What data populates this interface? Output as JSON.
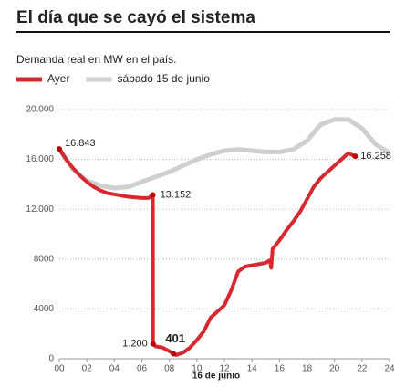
{
  "chart_data": {
    "type": "line",
    "title": "El día que se cayó el sistema",
    "subtitle": "Demanda real en MW en el país.",
    "xlabel": "16 de junio",
    "xlim": [
      0,
      24
    ],
    "xticks": [
      {
        "value": 0,
        "label": "00"
      },
      {
        "value": 2,
        "label": "02"
      },
      {
        "value": 4,
        "label": "04"
      },
      {
        "value": 6,
        "label": "06"
      },
      {
        "value": 8,
        "label": "08"
      },
      10,
      12,
      14,
      16,
      18,
      20,
      22,
      24
    ],
    "ylim": [
      0,
      20000
    ],
    "yticks": [
      0,
      4000,
      8000,
      {
        "value": 12000,
        "label": "12.000"
      },
      {
        "value": 16000,
        "label": "16.000"
      },
      {
        "value": 20000,
        "label": "20.000"
      }
    ],
    "grid": true,
    "series": [
      {
        "name": "sábado 15 de junio",
        "color": "#cfcfcf",
        "x": [
          0,
          1,
          2,
          3,
          4,
          5,
          6,
          7,
          8,
          9,
          10,
          11,
          12,
          13,
          14,
          15,
          16,
          17,
          18,
          19,
          20,
          21,
          22,
          23,
          24
        ],
        "values": [
          16843,
          15200,
          14300,
          13900,
          13700,
          13800,
          14200,
          14600,
          15000,
          15500,
          16000,
          16400,
          16700,
          16800,
          16700,
          16600,
          16600,
          16800,
          17500,
          18800,
          19200,
          19200,
          18500,
          17200,
          16500
        ]
      },
      {
        "name": "Ayer",
        "color": "#d7282f",
        "x": [
          0,
          0.5,
          1,
          1.5,
          2,
          2.5,
          3,
          3.5,
          4,
          5,
          6,
          6.5,
          6.8,
          6.81,
          7,
          7.5,
          8,
          8.3,
          8.5,
          9,
          9.5,
          10,
          10.5,
          11,
          11.5,
          12,
          12.5,
          13,
          13.5,
          14,
          14.5,
          15,
          15.3,
          15.4,
          15.5,
          16,
          16.5,
          17,
          17.5,
          18,
          18.5,
          19,
          19.5,
          20,
          20.5,
          21,
          21.5
        ],
        "values": [
          16843,
          16000,
          15300,
          14700,
          14200,
          13800,
          13500,
          13300,
          13200,
          13000,
          12900,
          12900,
          13152,
          1200,
          1000,
          900,
          600,
          401,
          300,
          500,
          900,
          1500,
          2200,
          3300,
          3800,
          4300,
          5500,
          7000,
          7400,
          7500,
          7600,
          7700,
          7900,
          7300,
          8800,
          9500,
          10300,
          11000,
          11800,
          12800,
          13800,
          14500,
          15000,
          15500,
          16000,
          16500,
          16258
        ]
      }
    ],
    "annotations": [
      {
        "label": "16.843",
        "x": 0,
        "value": 16843
      },
      {
        "label": "13.152",
        "x": 6.8,
        "value": 13152
      },
      {
        "label": "1.200",
        "x": 6.81,
        "value": 1200
      },
      {
        "label": "401",
        "x": 8.3,
        "value": 401
      },
      {
        "label": "16.258",
        "x": 21.5,
        "value": 16258
      }
    ]
  }
}
